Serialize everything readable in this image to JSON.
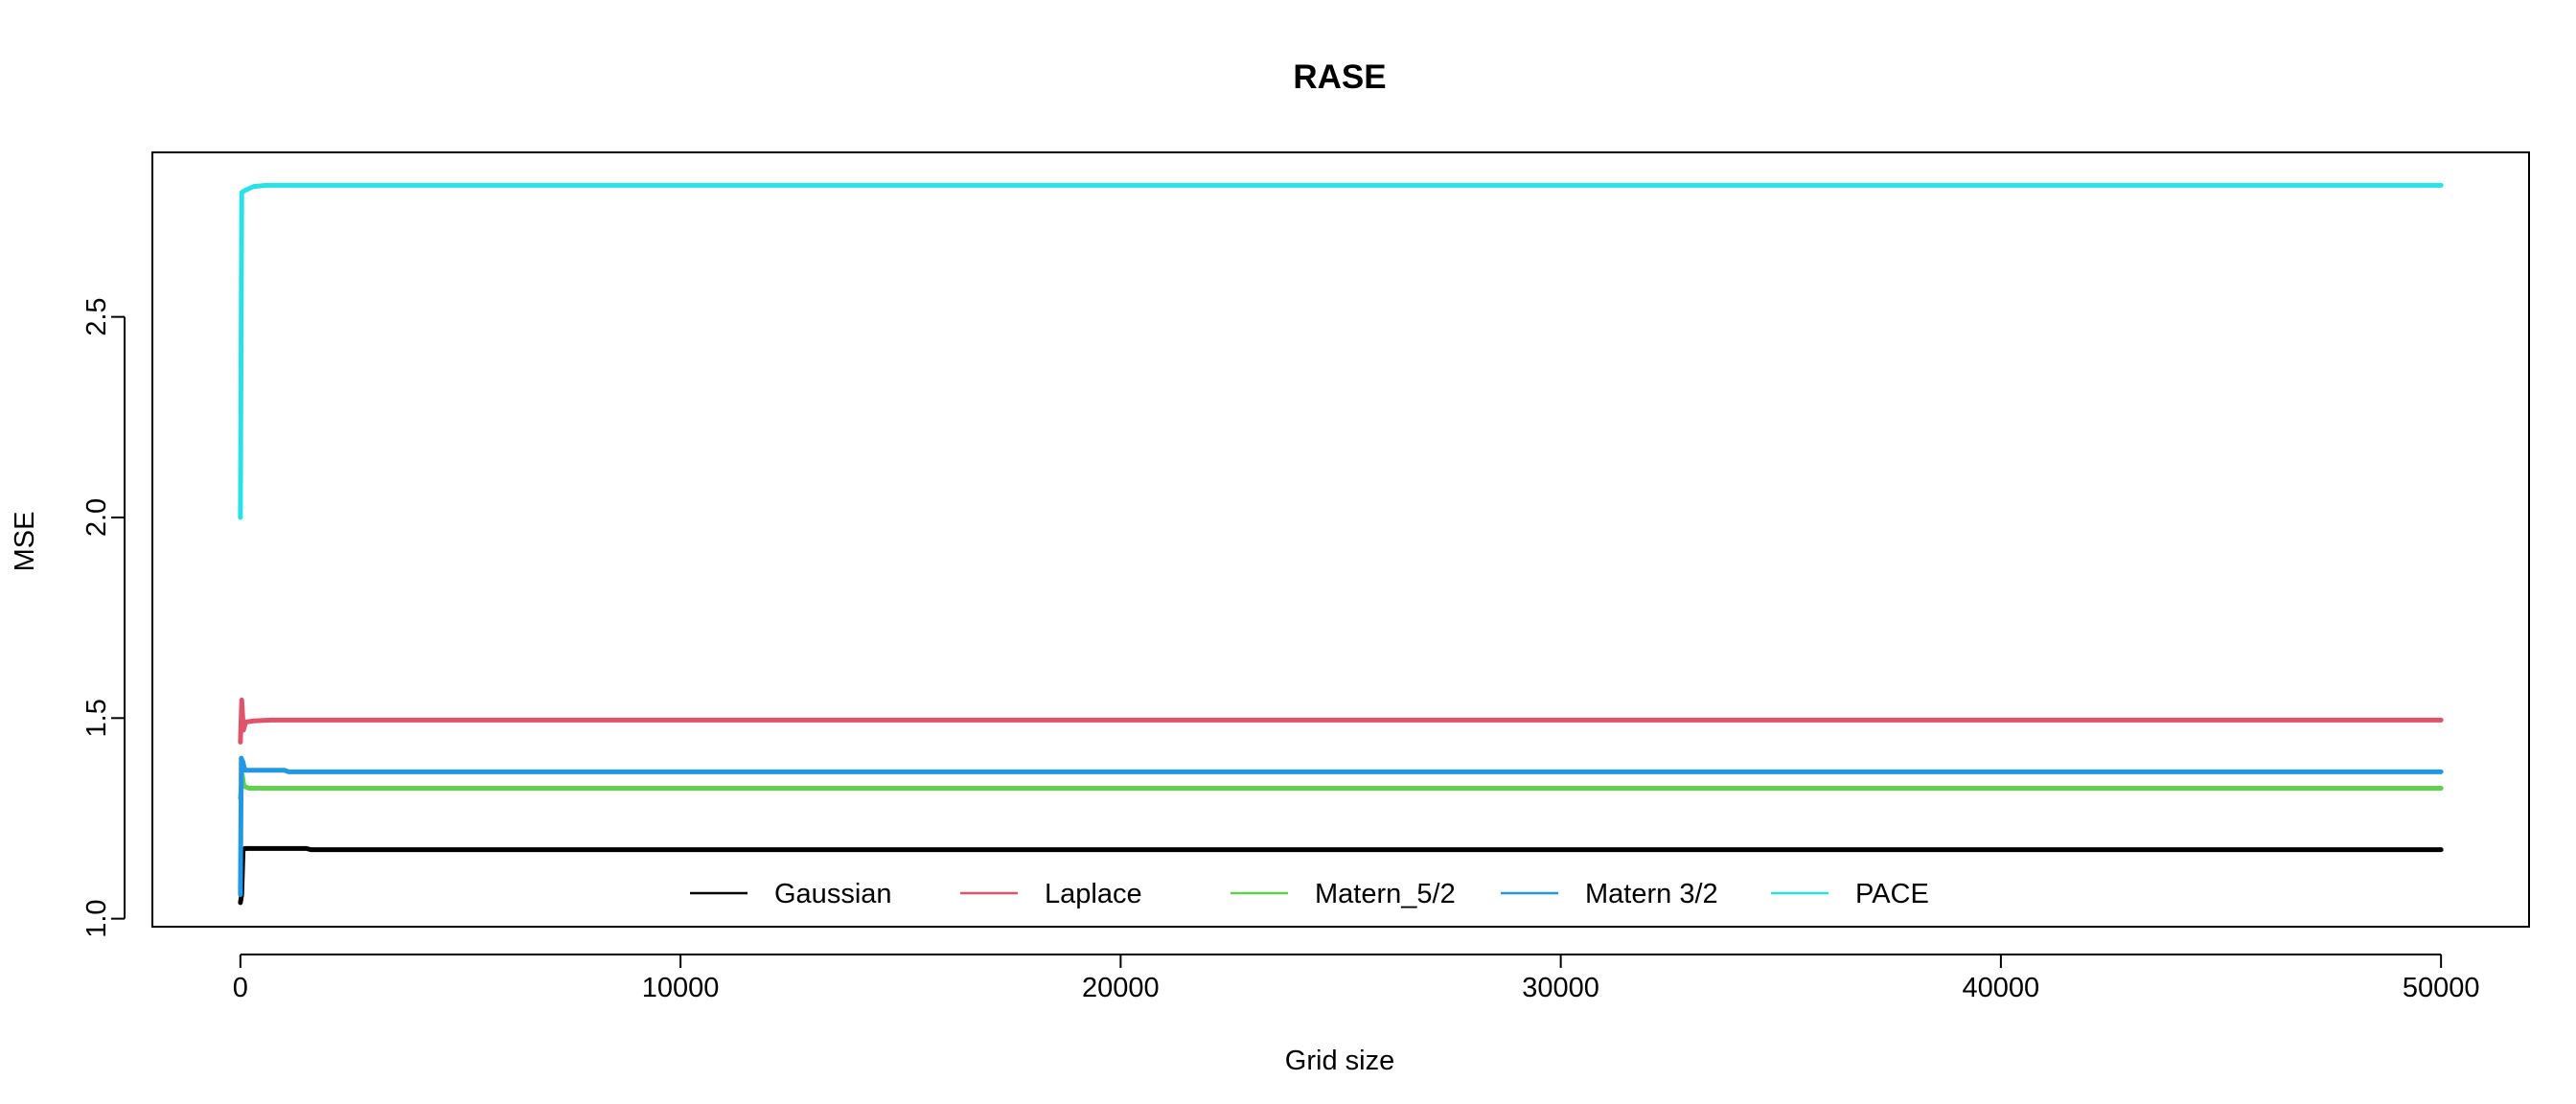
{
  "chart_data": {
    "type": "line",
    "title": "RASE",
    "xlabel": "Grid size",
    "ylabel": "MSE",
    "xlim": [
      -2000,
      52000
    ],
    "ylim": [
      0.98,
      2.91
    ],
    "x_ticks": [
      0,
      10000,
      20000,
      30000,
      40000,
      50000
    ],
    "x_tick_labels": [
      "0",
      "10000",
      "20000",
      "30000",
      "40000",
      "50000"
    ],
    "y_ticks": [
      1.0,
      1.5,
      2.0,
      2.5
    ],
    "y_tick_labels": [
      "1.0",
      "1.5",
      "2.0",
      "2.5"
    ],
    "grid": false,
    "legend_position": "bottom-center",
    "series": [
      {
        "name": "Gaussian",
        "color": "#000000",
        "points": [
          [
            0,
            1.04
          ],
          [
            30,
            1.06
          ],
          [
            60,
            1.17
          ],
          [
            100,
            1.175
          ],
          [
            500,
            1.175
          ],
          [
            1500,
            1.175
          ],
          [
            1600,
            1.172
          ],
          [
            50000,
            1.172
          ]
        ]
      },
      {
        "name": "Laplace",
        "color": "#DF536B",
        "points": [
          [
            0,
            1.44
          ],
          [
            30,
            1.545
          ],
          [
            70,
            1.47
          ],
          [
            120,
            1.49
          ],
          [
            300,
            1.493
          ],
          [
            700,
            1.495
          ],
          [
            50000,
            1.495
          ]
        ]
      },
      {
        "name": "Matern_5/2",
        "color": "#61D04F",
        "points": [
          [
            0,
            1.3
          ],
          [
            40,
            1.36
          ],
          [
            80,
            1.33
          ],
          [
            200,
            1.325
          ],
          [
            50000,
            1.325
          ]
        ]
      },
      {
        "name": "Matern 3/2",
        "color": "#2297E6",
        "points": [
          [
            0,
            1.06
          ],
          [
            20,
            1.4
          ],
          [
            60,
            1.39
          ],
          [
            100,
            1.37
          ],
          [
            500,
            1.37
          ],
          [
            1000,
            1.37
          ],
          [
            1100,
            1.366
          ],
          [
            50000,
            1.366
          ]
        ]
      },
      {
        "name": "PACE",
        "color": "#28E2E5",
        "points": [
          [
            0,
            2.0
          ],
          [
            30,
            2.81
          ],
          [
            100,
            2.815
          ],
          [
            300,
            2.825
          ],
          [
            600,
            2.828
          ],
          [
            50000,
            2.828
          ]
        ]
      }
    ]
  }
}
